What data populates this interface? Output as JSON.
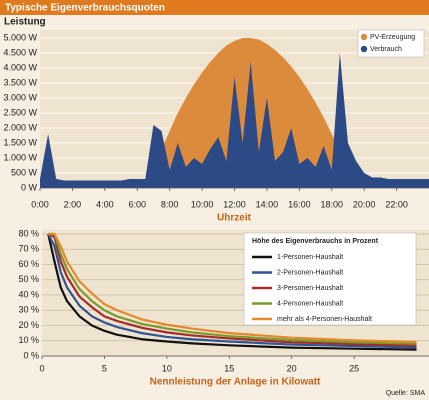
{
  "title": "Typische Eigenverbrauchsquoten",
  "source": "Quelle: SMA",
  "chart_data": [
    {
      "type": "area",
      "ylabel": "Leistung",
      "xlabel": "Uhrzeit",
      "x": [
        0,
        0.5,
        1,
        1.5,
        2,
        2.5,
        3,
        3.5,
        4,
        4.5,
        5,
        5.5,
        6,
        6.5,
        7,
        7.5,
        8,
        8.5,
        9,
        9.5,
        10,
        10.5,
        11,
        11.5,
        12,
        12.5,
        13,
        13.5,
        14,
        14.5,
        15,
        15.5,
        16,
        16.5,
        17,
        17.5,
        18,
        18.5,
        19,
        19.5,
        20,
        20.5,
        21,
        21.5,
        22,
        22.5,
        23,
        23.5,
        24
      ],
      "xlim": [
        0,
        24
      ],
      "xticks": [
        {
          "value": 0,
          "label": "0:00"
        },
        {
          "value": 2,
          "label": "2:00"
        },
        {
          "value": 4,
          "label": "4:00"
        },
        {
          "value": 6,
          "label": "6:00"
        },
        {
          "value": 8,
          "label": "8:00"
        },
        {
          "value": 10,
          "label": "10:00"
        },
        {
          "value": 12,
          "label": "12:00"
        },
        {
          "value": 14,
          "label": "14:00"
        },
        {
          "value": 16,
          "label": "16:00"
        },
        {
          "value": 18,
          "label": "18:00"
        },
        {
          "value": 20,
          "label": "20:00"
        },
        {
          "value": 22,
          "label": "22:00"
        }
      ],
      "ylim": [
        0,
        5000
      ],
      "yticks": [
        {
          "value": 0,
          "label": "0 W"
        },
        {
          "value": 500,
          "label": "500 W"
        },
        {
          "value": 1000,
          "label": "1.000 W"
        },
        {
          "value": 1500,
          "label": "1.500 W"
        },
        {
          "value": 2000,
          "label": "2.000 W"
        },
        {
          "value": 2500,
          "label": "2.500 W"
        },
        {
          "value": 3000,
          "label": "3.000 W"
        },
        {
          "value": 3500,
          "label": "3.500 W"
        },
        {
          "value": 4000,
          "label": "4.000 W"
        },
        {
          "value": 4500,
          "label": "4.500 W"
        },
        {
          "value": 5000,
          "label": "5.000 W"
        }
      ],
      "grid": true,
      "legend": "upper right",
      "series": [
        {
          "name": "PV-Erzeugung",
          "color": "#dc8a3c",
          "values": [
            0,
            0,
            0,
            0,
            0,
            0,
            0,
            0,
            0,
            0,
            0,
            0,
            0,
            0,
            600,
            1300,
            1900,
            2500,
            3000,
            3450,
            3850,
            4200,
            4500,
            4750,
            4900,
            5000,
            5000,
            4950,
            4800,
            4600,
            4350,
            4050,
            3700,
            3300,
            2850,
            2350,
            1800,
            1250,
            700,
            200,
            0,
            0,
            0,
            0,
            0,
            0,
            0,
            0,
            0
          ]
        },
        {
          "name": "Verbrauch",
          "color": "#2c4a86",
          "values": [
            300,
            1800,
            300,
            250,
            250,
            250,
            250,
            250,
            250,
            250,
            250,
            300,
            300,
            300,
            2100,
            1900,
            600,
            1500,
            700,
            1000,
            800,
            1300,
            1700,
            900,
            3700,
            1500,
            4200,
            1200,
            3000,
            900,
            1200,
            2000,
            800,
            1000,
            700,
            1400,
            600,
            4500,
            1500,
            900,
            500,
            350,
            350,
            300,
            300,
            300,
            300,
            300,
            300
          ]
        }
      ]
    },
    {
      "type": "line",
      "xlabel": "Nennleistung der Anlage in Kilowatt",
      "legend_title": "Höhe des Eigenverbrauchs in Prozent",
      "legend": "upper right",
      "x": [
        0.5,
        1,
        1.5,
        2,
        3,
        4,
        5,
        6,
        8,
        10,
        12,
        15,
        20,
        25,
        30
      ],
      "xlim": [
        0,
        31
      ],
      "xticks": [
        0,
        5,
        10,
        15,
        20,
        25
      ],
      "ylim": [
        0,
        80
      ],
      "yticks": [
        {
          "value": 0,
          "label": "0 %"
        },
        {
          "value": 10,
          "label": "10 %"
        },
        {
          "value": 20,
          "label": "20 %"
        },
        {
          "value": 30,
          "label": "30 %"
        },
        {
          "value": 40,
          "label": "40 %"
        },
        {
          "value": 50,
          "label": "50 %"
        },
        {
          "value": 60,
          "label": "60 %"
        },
        {
          "value": 70,
          "label": "70 %"
        },
        {
          "value": 80,
          "label": "80 %"
        }
      ],
      "grid": true,
      "series": [
        {
          "name": "1-Personen-Haushalt",
          "color": "#111111",
          "values": [
            80,
            62,
            45,
            36,
            26,
            20,
            16.5,
            14,
            11,
            9.5,
            8.3,
            7,
            5.5,
            4.8,
            4.2
          ]
        },
        {
          "name": "2-Personen-Haushalt",
          "color": "#2f5597",
          "values": [
            80,
            72,
            55,
            45,
            33,
            26,
            22,
            19,
            15,
            12.5,
            11,
            9.5,
            7.5,
            6.5,
            5.6
          ]
        },
        {
          "name": "3-Personen-Haushalt",
          "color": "#a52a2a",
          "values": [
            80,
            78,
            62,
            52,
            39,
            32,
            26,
            23,
            18.5,
            15.5,
            13.5,
            11.5,
            9,
            7.8,
            6.8
          ]
        },
        {
          "name": "4-Personen-Haushalt",
          "color": "#7a9a2a",
          "values": [
            80,
            80,
            67,
            57,
            44,
            36,
            30,
            26,
            21,
            18,
            15.5,
            13,
            10.5,
            9,
            8
          ]
        },
        {
          "name": "mehr als 4-Personen-Haushalt",
          "color": "#e3892c",
          "values": [
            80,
            80,
            72,
            62,
            49,
            41,
            34,
            30,
            24,
            20.5,
            18,
            15,
            12,
            10.3,
            9.2
          ]
        }
      ]
    }
  ]
}
